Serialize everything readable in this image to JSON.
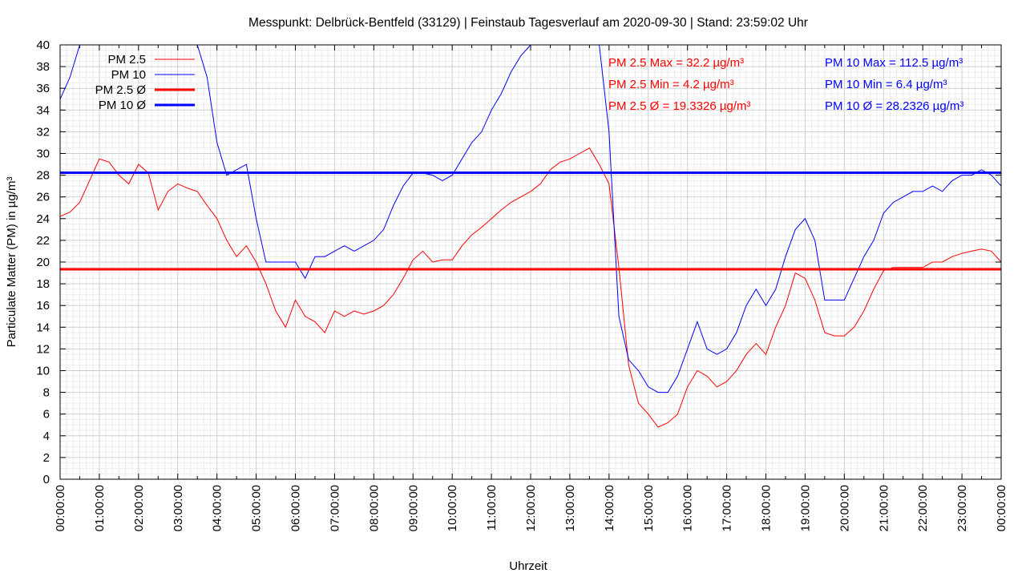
{
  "chart_data": {
    "type": "line",
    "title": "Messpunkt: Delbrück-Bentfeld (33129) | Feinstaub Tagesverlauf am 2020-09-30 | Stand: 23:59:02 Uhr",
    "xlabel": "Uhrzeit",
    "ylabel": "Particulate Matter (PM) in µg/m³",
    "xlim": [
      "00:00:00",
      "24:00:00"
    ],
    "ylim": [
      0,
      40
    ],
    "grid": true,
    "legend_position": "top-left",
    "x_tick_labels": [
      "00:00:00",
      "01:00:00",
      "02:00:00",
      "03:00:00",
      "04:00:00",
      "05:00:00",
      "06:00:00",
      "07:00:00",
      "08:00:00",
      "09:00:00",
      "10:00:00",
      "11:00:00",
      "12:00:00",
      "13:00:00",
      "14:00:00",
      "15:00:00",
      "16:00:00",
      "17:00:00",
      "18:00:00",
      "19:00:00",
      "20:00:00",
      "21:00:00",
      "22:00:00",
      "23:00:00",
      "00:00:00"
    ],
    "y_ticks": [
      0,
      2,
      4,
      6,
      8,
      10,
      12,
      14,
      16,
      18,
      20,
      22,
      24,
      26,
      28,
      30,
      32,
      34,
      36,
      38,
      40
    ],
    "x_hours": [
      0,
      0.25,
      0.5,
      0.75,
      1,
      1.25,
      1.5,
      1.75,
      2,
      2.25,
      2.5,
      2.75,
      3,
      3.25,
      3.5,
      3.75,
      4,
      4.25,
      4.5,
      4.75,
      5,
      5.25,
      5.5,
      5.75,
      6,
      6.25,
      6.5,
      6.75,
      7,
      7.25,
      7.5,
      7.75,
      8,
      8.25,
      8.5,
      8.75,
      9,
      9.25,
      9.5,
      9.75,
      10,
      10.25,
      10.5,
      10.75,
      11,
      11.25,
      11.5,
      11.75,
      12,
      12.25,
      12.5,
      12.75,
      13,
      13.25,
      13.5,
      13.75,
      14,
      14.25,
      14.5,
      14.75,
      15,
      15.25,
      15.5,
      15.75,
      16,
      16.25,
      16.5,
      16.75,
      17,
      17.25,
      17.5,
      17.75,
      18,
      18.25,
      18.5,
      18.75,
      19,
      19.25,
      19.5,
      19.75,
      20,
      20.25,
      20.5,
      20.75,
      21,
      21.25,
      21.5,
      21.75,
      22,
      22.25,
      22.5,
      22.75,
      23,
      23.25,
      23.5,
      23.75,
      24
    ],
    "series": [
      {
        "name": "PM 2.5",
        "color": "#ff0000",
        "values": [
          24.2,
          24.6,
          25.5,
          27.5,
          29.5,
          29.2,
          28,
          27.2,
          29,
          28.2,
          24.8,
          26.5,
          27.2,
          26.8,
          26.5,
          25.2,
          24,
          22,
          20.5,
          21.5,
          20,
          18,
          15.5,
          14,
          16.5,
          15,
          14.5,
          13.5,
          15.5,
          15,
          15.5,
          15.2,
          15.5,
          16,
          17,
          18.5,
          20.2,
          21,
          20,
          20.2,
          20.2,
          21.5,
          22.5,
          23.2,
          24,
          24.8,
          25.5,
          26,
          26.5,
          27.2,
          28.5,
          29.2,
          29.5,
          30,
          30.5,
          29,
          27.2,
          19.5,
          10.5,
          7,
          6,
          4.8,
          5.2,
          6,
          8.5,
          10,
          9.5,
          8.5,
          9,
          10,
          11.5,
          12.5,
          11.5,
          14,
          16,
          19,
          18.5,
          16.5,
          13.5,
          13.2,
          13.2,
          14,
          15.5,
          17.5,
          19.2,
          19.5,
          19.5,
          19.5,
          19.5,
          20,
          20,
          20.5,
          20.8,
          21,
          21.2,
          21,
          20
        ]
      },
      {
        "name": "PM 10",
        "color": "#0000ff",
        "values": [
          35,
          37,
          40,
          40,
          40,
          40,
          40,
          40,
          40,
          40,
          40,
          40,
          40,
          40,
          40,
          37,
          31,
          28,
          28.5,
          29,
          24,
          20,
          20,
          20,
          20,
          18.5,
          20.5,
          20.5,
          21,
          21.5,
          21,
          21.5,
          22,
          23,
          25.2,
          27,
          28.2,
          28.2,
          28,
          27.5,
          28,
          29.5,
          31,
          32,
          34,
          35.5,
          37.5,
          39,
          40,
          40,
          40,
          40,
          40,
          40,
          40,
          40,
          32,
          15,
          11,
          10,
          8.5,
          8,
          8,
          9.5,
          12,
          14.5,
          12,
          11.5,
          12,
          13.5,
          16,
          17.5,
          16,
          17.5,
          20.5,
          23,
          24,
          22,
          16.5,
          16.5,
          16.5,
          18.5,
          20.5,
          22,
          24.5,
          25.5,
          26,
          26.5,
          26.5,
          27,
          26.5,
          27.5,
          28,
          28,
          28.5,
          28,
          27
        ]
      },
      {
        "name": "PM 2.5 Ø",
        "color": "#ff0000",
        "value": 19.3326
      },
      {
        "name": "PM 10 Ø",
        "color": "#0000ff",
        "value": 28.2326
      }
    ],
    "legend": [
      "PM 2.5",
      "PM 10",
      "PM 2.5 Ø",
      "PM 10 Ø"
    ],
    "annotations": {
      "pm25": [
        "PM 2.5 Max = 32.2 µg/m³",
        "PM 2.5 Min = 4.2 µg/m³",
        "PM 2.5 Ø = 19.3326 µg/m³"
      ],
      "pm10": [
        "PM 10 Max = 112.5 µg/m³",
        "PM 10 Min = 6.4 µg/m³",
        "PM 10 Ø = 28.2326 µg/m³"
      ]
    }
  }
}
